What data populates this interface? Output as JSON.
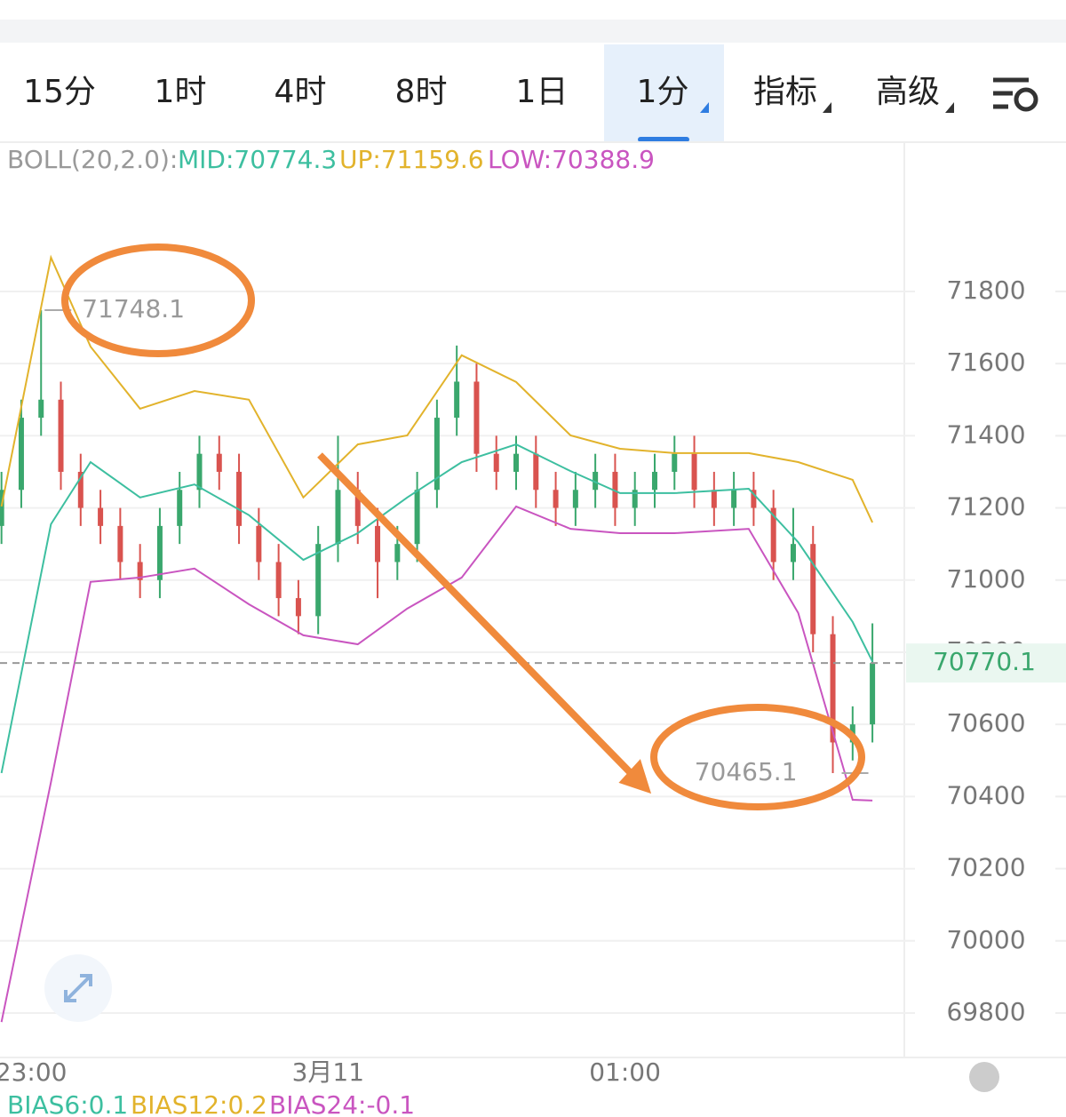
{
  "tabs": [
    "15分",
    "1时",
    "4时",
    "8时",
    "1日",
    "1分",
    "指标",
    "高级"
  ],
  "active_tab": 5,
  "indicator": {
    "name": "BOLL(20,2.0):",
    "mid": "MID:70774.3",
    "up": "UP:71159.6",
    "low": "LOW:70388.9"
  },
  "bias": [
    "BIAS6:0.1",
    "BIAS12:0.2",
    "BIAS24:-0.1"
  ],
  "chart_data": {
    "type": "candlestick",
    "x": [
      -6,
      -2,
      2,
      6,
      10,
      14,
      18,
      22,
      26,
      30,
      34,
      38,
      42,
      46,
      50,
      54,
      58,
      62,
      66,
      70,
      74,
      78,
      82,
      86,
      90,
      94,
      98,
      102,
      106,
      110,
      114,
      118,
      122,
      126,
      130,
      134,
      138,
      142,
      146,
      150,
      154,
      158,
      162,
      166,
      170
    ],
    "open": [
      71150,
      71250,
      71450,
      71500,
      71300,
      71200,
      71150,
      71050,
      71000,
      71150,
      71250,
      71350,
      71300,
      71150,
      71050,
      70950,
      70900,
      71100,
      71250,
      71150,
      71050,
      71100,
      71250,
      71450,
      71550,
      71350,
      71300,
      71350,
      71250,
      71200,
      71250,
      71300,
      71200,
      71250,
      71300,
      71350,
      71250,
      71200,
      71250,
      71200,
      71050,
      71100,
      70850,
      70550,
      70600
    ],
    "high": [
      71300,
      71500,
      71748,
      71550,
      71350,
      71250,
      71200,
      71100,
      71200,
      71300,
      71400,
      71400,
      71350,
      71200,
      71100,
      71000,
      71150,
      71400,
      71300,
      71200,
      71150,
      71300,
      71500,
      71650,
      71600,
      71400,
      71400,
      71400,
      71300,
      71300,
      71350,
      71350,
      71300,
      71350,
      71400,
      71400,
      71300,
      71300,
      71300,
      71250,
      71200,
      71150,
      70900,
      70650,
      70880
    ],
    "low": [
      71100,
      71200,
      71400,
      71250,
      71150,
      71100,
      71000,
      70950,
      70950,
      71100,
      71200,
      71250,
      71100,
      71000,
      70900,
      70850,
      70850,
      71050,
      71100,
      70950,
      71000,
      71050,
      71200,
      71400,
      71300,
      71250,
      71250,
      71200,
      71150,
      71150,
      71200,
      71150,
      71150,
      71200,
      71250,
      71200,
      71150,
      71150,
      71150,
      71000,
      71000,
      70800,
      70465,
      70500,
      70550
    ],
    "close": [
      71250,
      71450,
      71500,
      71300,
      71200,
      71150,
      71050,
      71000,
      71150,
      71250,
      71350,
      71300,
      71150,
      71050,
      70950,
      70900,
      71100,
      71250,
      71150,
      71050,
      71100,
      71250,
      71450,
      71550,
      71350,
      71300,
      71350,
      71250,
      71200,
      71250,
      71300,
      71200,
      71250,
      71300,
      71350,
      71250,
      71200,
      71250,
      71200,
      71050,
      71100,
      70850,
      70550,
      70600,
      70770
    ],
    "colors": {
      "up": "#3aa76d",
      "down": "#d9534f"
    },
    "line_x": [
      -6,
      4,
      12,
      22,
      33,
      44,
      55,
      66,
      76,
      87,
      98,
      109,
      119,
      130,
      145,
      155,
      166,
      170
    ],
    "lines": [
      {
        "color": "#3dbfa0",
        "values": [
          70465,
          71155,
          71327,
          71229,
          71265,
          71180,
          71056,
          71130,
          71229,
          71327,
          71376,
          71302,
          71241,
          71241,
          71253,
          71105,
          70884,
          70774.3
        ]
      },
      {
        "color": "#e2b32c",
        "values": [
          71204,
          71894,
          71647,
          71475,
          71524,
          71500,
          71229,
          71376,
          71401,
          71623,
          71549,
          71401,
          71364,
          71352,
          71352,
          71327,
          71278,
          71159.6
        ]
      },
      {
        "color": "#c955c0",
        "values": [
          69775,
          70440,
          70995,
          71007,
          71032,
          70933,
          70847,
          70822,
          70921,
          71007,
          71204,
          71142,
          71130,
          71130,
          71142,
          70909,
          70391,
          70388.9
        ]
      }
    ],
    "last_price": 70770.1,
    "annotations": [
      {
        "x": 2,
        "value": 71748.1
      },
      {
        "x": 162,
        "value": 70465.1
      }
    ],
    "xlim": [
      -6.3,
      178.6
    ],
    "xticks": [
      {
        "value": 0,
        "label": "23:00"
      },
      {
        "value": 60,
        "label": "3月11"
      },
      {
        "value": 120,
        "label": "01:00"
      }
    ],
    "ylim": [
      69680,
      72210
    ],
    "yticks": [
      69800,
      70000,
      70200,
      70400,
      70600,
      70800,
      71000,
      71200,
      71400,
      71600,
      71800
    ],
    "grid": true
  }
}
